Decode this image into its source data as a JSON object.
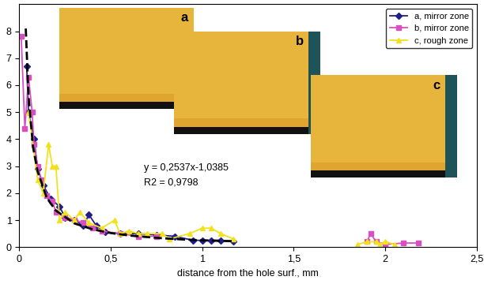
{
  "chart_data": {
    "type": "line",
    "x_label": "distance from the hole surf., mm",
    "xlim": [
      0,
      2.5
    ],
    "xticks": [
      0,
      {
        "value": 0.5,
        "label": "0,5"
      },
      1,
      {
        "value": 1.5,
        "label": "1,5"
      },
      2,
      {
        "value": 2.5,
        "label": "2,5"
      }
    ],
    "ylim": [
      0,
      9
    ],
    "yticks": [
      0,
      1,
      2,
      3,
      4,
      5,
      6,
      7,
      8
    ],
    "grid": false,
    "legend": "upper right",
    "series": [
      {
        "name": "a, mirror zone",
        "color": "#1f1f8c",
        "marker": "diamond",
        "line_style": "solid",
        "x": [
          0.04,
          0.05,
          0.08,
          0.1,
          0.13,
          0.17,
          0.22,
          0.25,
          0.3,
          0.35,
          0.38,
          0.42,
          0.47,
          0.55,
          0.65,
          0.75,
          0.85,
          0.95,
          1.0,
          1.05,
          1.1,
          1.17
        ],
        "values": [
          6.7,
          5.0,
          4.0,
          2.9,
          2.3,
          1.8,
          1.5,
          1.1,
          1.0,
          0.8,
          1.2,
          0.8,
          0.55,
          0.5,
          0.5,
          0.45,
          0.4,
          0.25,
          0.25,
          0.25,
          0.25,
          0.2
        ]
      },
      {
        "name": "b, mirror zone",
        "color": "#d94fc0",
        "marker": "square",
        "line_style": "solid",
        "x": [
          0.01,
          0.03,
          0.05,
          0.07,
          0.08,
          0.1,
          0.12,
          0.15,
          0.18,
          0.2,
          0.25,
          0.3,
          0.35,
          0.4,
          0.45,
          0.55,
          0.65,
          0.75,
          1.9,
          1.9,
          1.92,
          1.95,
          2.0,
          2.1,
          2.18
        ],
        "values": [
          7.8,
          4.4,
          6.3,
          5.0,
          3.8,
          3.0,
          2.5,
          1.9,
          1.7,
          1.3,
          1.1,
          1.0,
          0.9,
          0.7,
          0.6,
          0.5,
          0.4,
          0.4,
          null,
          0.2,
          0.5,
          0.2,
          0.1,
          0.15,
          0.15
        ]
      },
      {
        "name": "c, rough zone",
        "color": "#f2e21c",
        "marker": "triangle",
        "line_style": "solid",
        "x": [
          0.05,
          0.1,
          0.13,
          0.16,
          0.18,
          0.2,
          0.22,
          0.25,
          0.3,
          0.33,
          0.38,
          0.45,
          0.52,
          0.55,
          0.6,
          0.65,
          0.7,
          0.78,
          0.82,
          0.93,
          1.0,
          1.05,
          1.1,
          1.17,
          1.85,
          1.85,
          1.9,
          1.95,
          1.97,
          2.0,
          2.05
        ],
        "values": [
          5.0,
          2.5,
          2.0,
          3.8,
          3.0,
          3.0,
          1.0,
          1.3,
          1.0,
          1.3,
          0.9,
          0.7,
          1.0,
          0.5,
          0.6,
          0.5,
          0.5,
          0.5,
          0.3,
          0.5,
          0.7,
          0.7,
          0.5,
          0.3,
          null,
          0.1,
          0.2,
          0.2,
          0.1,
          0.2,
          0.1
        ]
      },
      {
        "color": "#000000",
        "marker": "none",
        "line_style": "dashed",
        "x": [
          0.035,
          0.05,
          0.075,
          0.1,
          0.15,
          0.2,
          0.3,
          0.4,
          0.5,
          0.6,
          0.7,
          0.8,
          0.9,
          1.0,
          1.1,
          1.17
        ],
        "values": [
          8.1,
          5.6,
          3.7,
          2.8,
          1.82,
          1.35,
          0.88,
          0.66,
          0.52,
          0.43,
          0.37,
          0.32,
          0.28,
          0.25,
          0.23,
          0.22
        ]
      }
    ],
    "annotations": [
      {
        "text": "y = 0,2537x-1,0385",
        "x": 0.68,
        "y": 2.85
      },
      {
        "text": "R2 = 0,9798",
        "x": 0.68,
        "y": 2.3
      },
      {
        "text": "a"
      },
      {
        "text": "b"
      },
      {
        "text": "c"
      }
    ]
  }
}
